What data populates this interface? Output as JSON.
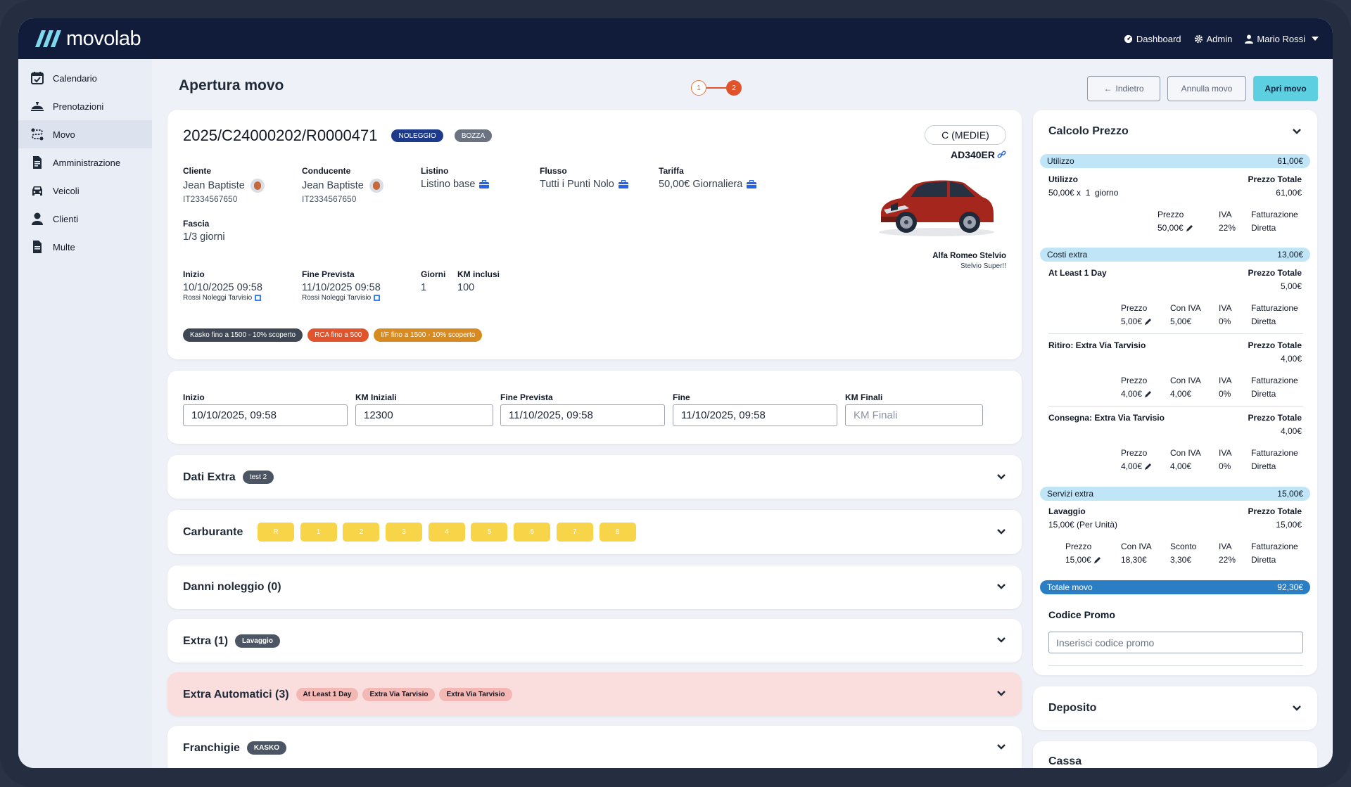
{
  "app": {
    "logo_text": "movolab"
  },
  "topnav": {
    "dashboard": "Dashboard",
    "admin": "Admin",
    "user": "Mario Rossi"
  },
  "sidebar": {
    "items": [
      {
        "label": "Calendario",
        "icon": "calendar-check-icon"
      },
      {
        "label": "Prenotazioni",
        "icon": "concierge-bell-icon"
      },
      {
        "label": "Movo",
        "icon": "route-icon"
      },
      {
        "label": "Amministrazione",
        "icon": "file-invoice-icon"
      },
      {
        "label": "Veicoli",
        "icon": "car-icon"
      },
      {
        "label": "Clienti",
        "icon": "user-icon"
      },
      {
        "label": "Multe",
        "icon": "file-icon"
      }
    ]
  },
  "page": {
    "title": "Apertura movo",
    "steps": [
      "1",
      "2"
    ],
    "current_step": 2
  },
  "actions": {
    "back": "Indietro",
    "cancel": "Annulla movo",
    "open": "Apri movo"
  },
  "movo": {
    "code": "2025/C24000202/R0000471",
    "badge_type": "NOLEGGIO",
    "badge_status": "BOZZA",
    "group": "C (MEDIE)",
    "plate": "AD340ER",
    "car_model": "Alfa Romeo Stelvio",
    "car_note": "Stelvio Super!!",
    "cliente": {
      "label": "Cliente",
      "name": "Jean Baptiste",
      "id": "IT2334567650"
    },
    "conducente": {
      "label": "Conducente",
      "name": "Jean Baptiste",
      "id": "IT2334567650"
    },
    "listino": {
      "label": "Listino",
      "value": "Listino base"
    },
    "flusso": {
      "label": "Flusso",
      "value": "Tutti i Punti Nolo"
    },
    "tariffa": {
      "label": "Tariffa",
      "value": "50,00€ Giornaliera"
    },
    "fascia": {
      "label": "Fascia",
      "value": "1/3 giorni"
    },
    "inizio": {
      "label": "Inizio",
      "value": "10/10/2025 09:58",
      "place": "Rossi Noleggi Tarvisio"
    },
    "fine_prevista": {
      "label": "Fine Prevista",
      "value": "11/10/2025 09:58",
      "place": "Rossi Noleggi Tarvisio"
    },
    "giorni": {
      "label": "Giorni",
      "value": "1"
    },
    "km_inclusi": {
      "label": "KM inclusi",
      "value": "100"
    },
    "coverages": [
      {
        "label": "Kasko fino a 1500 - 10% scoperto",
        "color": "#3f4754"
      },
      {
        "label": "RCA fino a 500",
        "color": "#e0532b"
      },
      {
        "label": "I/F fino a 1500 - 10% scoperto",
        "color": "#d68a1f"
      }
    ]
  },
  "form": {
    "inizio": {
      "label": "Inizio",
      "value": "10/10/2025, 09:58"
    },
    "km_iniziali": {
      "label": "KM Iniziali",
      "value": "12300"
    },
    "fine_prevista": {
      "label": "Fine Prevista",
      "value": "11/10/2025, 09:58"
    },
    "fine": {
      "label": "Fine",
      "value": "11/10/2025, 09:58"
    },
    "km_finali": {
      "label": "KM Finali",
      "value": "",
      "placeholder": "KM Finali"
    }
  },
  "sections": {
    "dati_extra": {
      "title": "Dati Extra",
      "badge": "test 2"
    },
    "carburante": {
      "title": "Carburante",
      "levels": [
        "R",
        "1",
        "2",
        "3",
        "4",
        "5",
        "6",
        "7",
        "8"
      ]
    },
    "danni": {
      "title": "Danni noleggio (0)"
    },
    "extra": {
      "title": "Extra (1)",
      "badge": "Lavaggio"
    },
    "extra_auto": {
      "title": "Extra Automatici (3)",
      "badges": [
        "At Least 1 Day",
        "Extra Via Tarvisio",
        "Extra Via Tarvisio"
      ]
    },
    "franchigie": {
      "title": "Franchigie",
      "badge": "KASKO"
    }
  },
  "calcolo": {
    "title": "Calcolo Prezzo",
    "utilizzo": {
      "bar": "Utilizzo",
      "bar_total": "61,00€",
      "name": "Utilizzo",
      "detail": "50,00€ x  1  giorno",
      "pt_label": "Prezzo Totale",
      "pt": "61,00€",
      "prezzo_label": "Prezzo",
      "prezzo": "50,00€",
      "iva_label": "IVA",
      "iva": "22%",
      "fatt_label": "Fatturazione",
      "fatt": "Diretta"
    },
    "costi_extra": {
      "bar": "Costi extra",
      "bar_total": "13,00€",
      "items": [
        {
          "name": "At Least 1 Day",
          "pt_label": "Prezzo Totale",
          "pt": "5,00€",
          "prezzo_label": "Prezzo",
          "prezzo": "5,00€",
          "coniva_label": "Con IVA",
          "coniva": "5,00€",
          "iva_label": "IVA",
          "iva": "0%",
          "fatt_label": "Fatturazione",
          "fatt": "Diretta"
        },
        {
          "name": "Ritiro: Extra Via Tarvisio",
          "pt_label": "Prezzo Totale",
          "pt": "4,00€",
          "prezzo_label": "Prezzo",
          "prezzo": "4,00€",
          "coniva_label": "Con IVA",
          "coniva": "4,00€",
          "iva_label": "IVA",
          "iva": "0%",
          "fatt_label": "Fatturazione",
          "fatt": "Diretta"
        },
        {
          "name": "Consegna: Extra Via Tarvisio",
          "pt_label": "Prezzo Totale",
          "pt": "4,00€",
          "prezzo_label": "Prezzo",
          "prezzo": "4,00€",
          "coniva_label": "Con IVA",
          "coniva": "4,00€",
          "iva_label": "IVA",
          "iva": "0%",
          "fatt_label": "Fatturazione",
          "fatt": "Diretta"
        }
      ]
    },
    "servizi_extra": {
      "bar": "Servizi extra",
      "bar_total": "15,00€",
      "name": "Lavaggio",
      "detail": "15,00€ (Per Unità)",
      "pt_label": "Prezzo Totale",
      "pt": "15,00€",
      "prezzo_label": "Prezzo",
      "prezzo": "15,00€",
      "coniva_label": "Con IVA",
      "coniva": "18,30€",
      "sconto_label": "Sconto",
      "sconto": "3,30€",
      "iva_label": "IVA",
      "iva": "22%",
      "fatt_label": "Fatturazione",
      "fatt": "Diretta"
    },
    "totale": {
      "label": "Totale movo",
      "value": "92,30€"
    },
    "promo": {
      "label": "Codice Promo",
      "placeholder": "Inserisci codice promo"
    }
  },
  "deposito": {
    "title": "Deposito"
  },
  "cassa": {
    "title": "Cassa"
  },
  "colors": {
    "navy": "#111b3a",
    "accent": "#5ccfe1",
    "orange": "#e0532b",
    "fuel": "#f7d448",
    "blue_badge": "#1e40af"
  }
}
